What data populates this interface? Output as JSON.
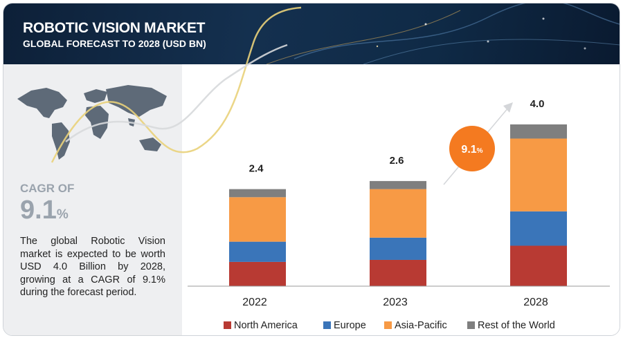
{
  "header": {
    "title": "ROBOTIC VISION MARKET",
    "subtitle": "GLOBAL FORECAST TO 2028 (USD BN)"
  },
  "sidebar": {
    "cagr_label": "CAGR OF",
    "cagr_value": "9.1",
    "cagr_unit": "%",
    "description": "The global Robotic Vision market is expected to be worth USD 4.0 Billion by 2028, growing at a CAGR of 9.1% during the forecast period."
  },
  "badge": {
    "value": "9.1",
    "unit": "%"
  },
  "colors": {
    "north_america": "#b83a33",
    "europe": "#3a75b9",
    "asia_pacific": "#f79a45",
    "rest_of_world": "#7f7f7f",
    "badge": "#f47a20",
    "banner": "#12304f"
  },
  "chart_data": {
    "type": "bar",
    "stacked": true,
    "categories": [
      "2022",
      "2023",
      "2028"
    ],
    "series": [
      {
        "name": "North America",
        "values": [
          0.6,
          0.65,
          1.0
        ]
      },
      {
        "name": "Europe",
        "values": [
          0.5,
          0.55,
          0.85
        ]
      },
      {
        "name": "Asia-Pacific",
        "values": [
          1.1,
          1.2,
          1.8
        ]
      },
      {
        "name": "Rest of the World",
        "values": [
          0.2,
          0.2,
          0.35
        ]
      }
    ],
    "totals": [
      "2.4",
      "2.6",
      "4.0"
    ],
    "ylim": [
      0,
      4.0
    ],
    "legend": "bottom",
    "grid": false
  }
}
